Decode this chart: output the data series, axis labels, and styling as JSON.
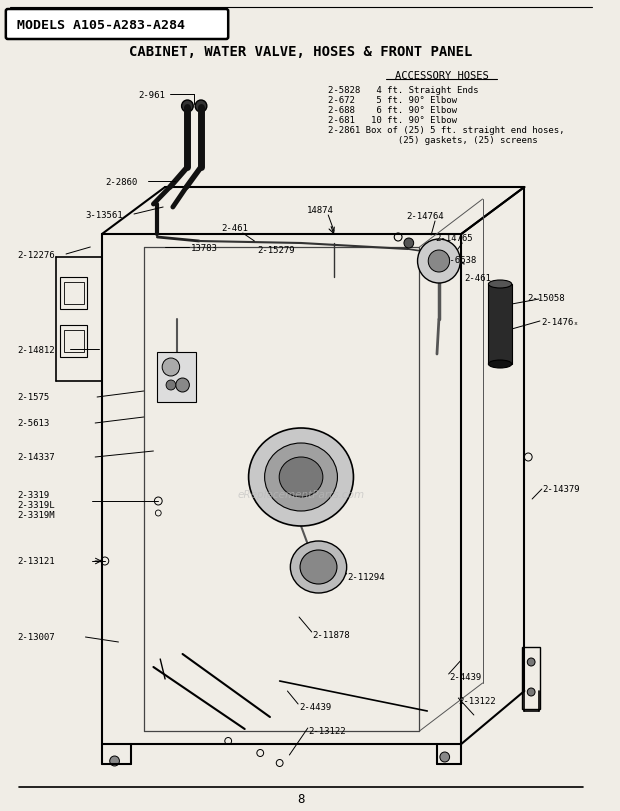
{
  "title_box": "MODELS A105-A283-A284",
  "subtitle": "CABINET, WATER VALVE, HOSES & FRONT PANEL",
  "page_number": "8",
  "bg_color": "#f0ede6",
  "accessory_hoses_title": "ACCESSORY HOSES",
  "accessory_hoses_lines": [
    "2-5828   4 ft. Straight Ends",
    "2-672    5 ft. 90° Elbow",
    "2-688    6 ft. 90° Elbow",
    "2-681   10 ft. 90° Elbow",
    "2-2861 Box of (25) 5 ft. straight end hoses,",
    "             (25) gaskets, (25) screens"
  ],
  "watermark": "eReplacementParts.com"
}
